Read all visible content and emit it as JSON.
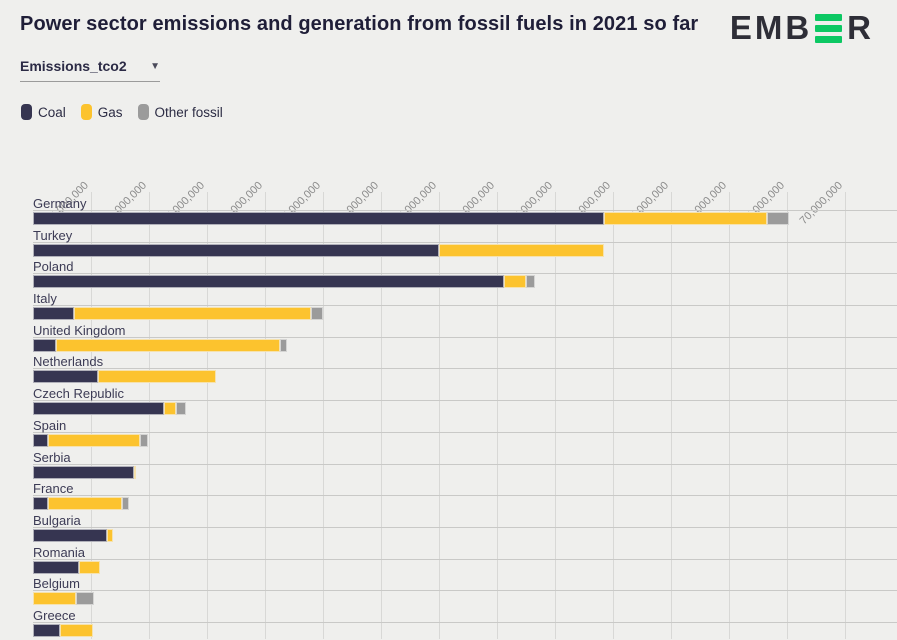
{
  "header": {
    "title": "Power sector emissions and generation from fossil fuels in 2021 so far",
    "logo": {
      "text_left": "EMB",
      "text_right": "R",
      "dark_color": "#2e2e37",
      "green_color": "#0cc863"
    }
  },
  "controls": {
    "metric_dropdown": {
      "value": "Emissions_tco2",
      "caret_icon": "▼"
    }
  },
  "legend": {
    "items": [
      {
        "label": "Coal",
        "color": "#363551"
      },
      {
        "label": "Gas",
        "color": "#fcc32e"
      },
      {
        "label": "Other fossil",
        "color": "#9b9b9b"
      }
    ]
  },
  "chart_data": {
    "type": "bar",
    "orientation": "horizontal",
    "stacked": true,
    "unit": "tCO2",
    "grid": true,
    "legend_position": "top",
    "categories": [
      "Germany",
      "Turkey",
      "Poland",
      "Italy",
      "United Kingdom",
      "Netherlands",
      "Czech Republic",
      "Spain",
      "Serbia",
      "France",
      "Bulgaria",
      "Romania",
      "Belgium",
      "Greece"
    ],
    "series": [
      {
        "name": "Coal",
        "color": "#363551",
        "values": [
          49200000,
          35000000,
          40600000,
          3500000,
          2000000,
          5600000,
          11300000,
          1300000,
          8700000,
          1300000,
          6400000,
          4000000,
          0,
          2300000
        ]
      },
      {
        "name": "Gas",
        "color": "#fcc32e",
        "values": [
          14100000,
          14200000,
          1900000,
          20500000,
          19300000,
          10200000,
          1000000,
          7900000,
          200000,
          6400000,
          500000,
          1800000,
          3700000,
          2900000
        ]
      },
      {
        "name": "Other fossil",
        "color": "#9b9b9b",
        "values": [
          1900000,
          0,
          800000,
          1000000,
          600000,
          0,
          900000,
          700000,
          0,
          600000,
          0,
          0,
          1600000,
          0
        ]
      }
    ],
    "x_axis": {
      "max": 74500000,
      "ticks": [
        5000000,
        10000000,
        15000000,
        20000000,
        25000000,
        30000000,
        35000000,
        40000000,
        45000000,
        50000000,
        55000000,
        60000000,
        65000000,
        70000000
      ],
      "tick_labels": [
        "5,000,000",
        "10,000,000",
        "15,000,000",
        "20,000,000",
        "25,000,000",
        "30,000,000",
        "35,000,000",
        "40,000,000",
        "45,000,000",
        "50,000,000",
        "55,000,000",
        "60,000,000",
        "65,000,000",
        "70,000,000"
      ]
    }
  }
}
